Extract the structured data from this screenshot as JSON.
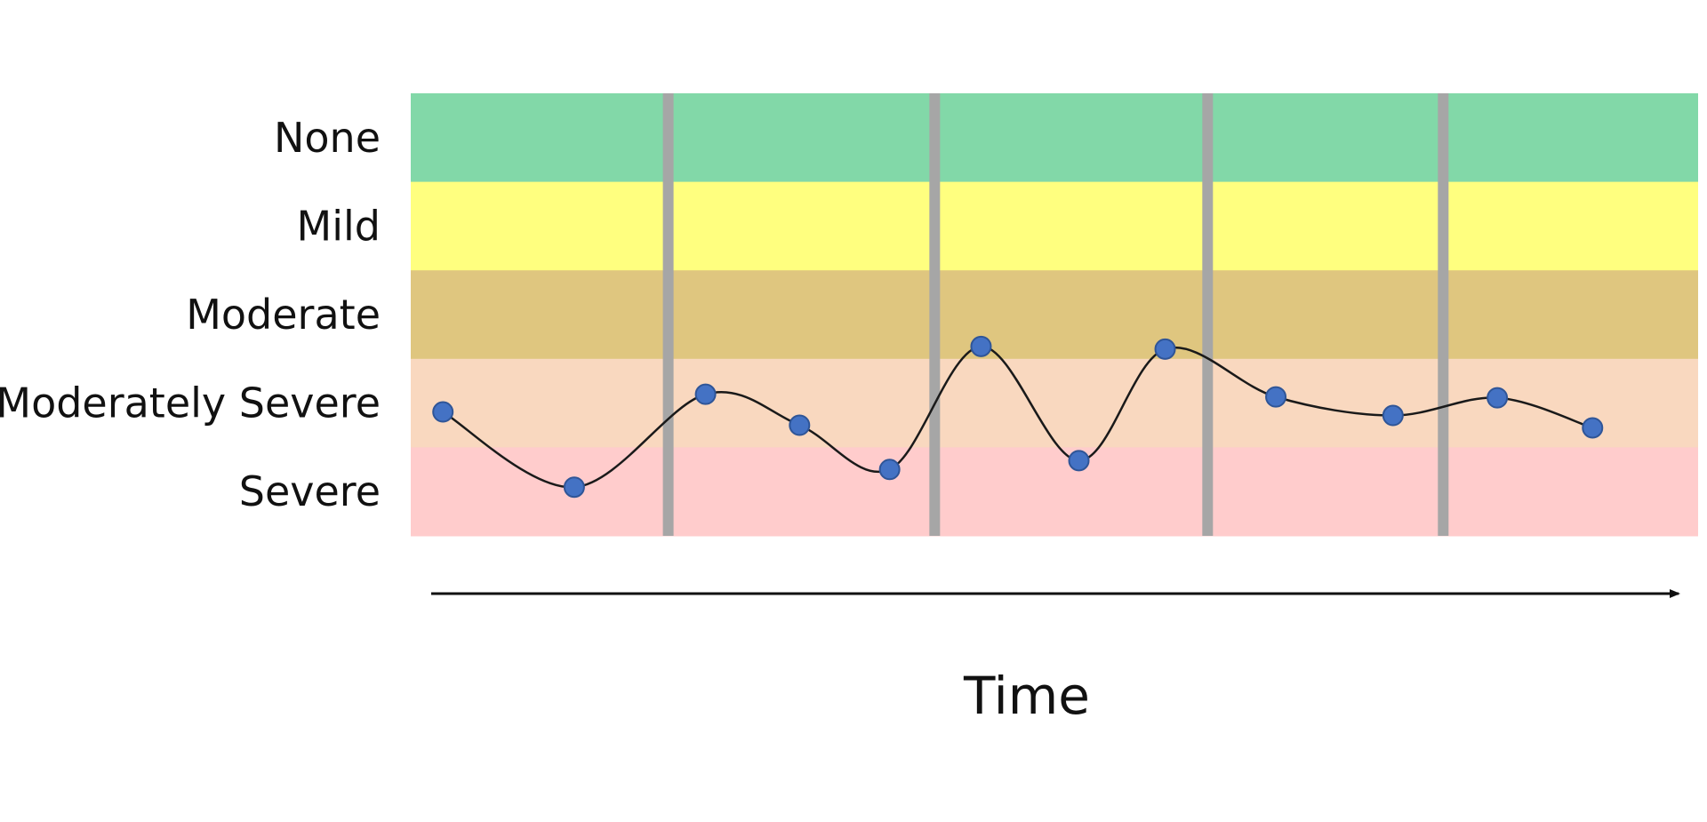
{
  "chart_data": {
    "type": "line",
    "title": "",
    "xlabel": "Time",
    "ylabel": "",
    "categories": [
      "None",
      "Mild",
      "Moderate",
      "Moderately Severe",
      "Severe"
    ],
    "band_colors": [
      "#82d8a8",
      "#ffff7f",
      "#dfc67f",
      "#f9d8bf",
      "#ffcccc"
    ],
    "separator_color": "#a6a6a6",
    "line_color": "#1a1a1a",
    "marker_color": "#4472c4",
    "marker_edge_color": "#2f5597",
    "axis_color": "#111111",
    "x_range": [
      0,
      100
    ],
    "y_range": [
      0,
      5
    ],
    "y_scale_note": "0 = bottom of Severe band, 5 = top of None band",
    "phase_separators_x": [
      20,
      40.7,
      61.9,
      80.2
    ],
    "series": [
      {
        "values": [
          {
            "x": 2.5,
            "y": 1.4
          },
          {
            "x": 12.7,
            "y": 0.55
          },
          {
            "x": 22.9,
            "y": 1.6
          },
          {
            "x": 30.2,
            "y": 1.25
          },
          {
            "x": 37.2,
            "y": 0.75
          },
          {
            "x": 44.3,
            "y": 2.14
          },
          {
            "x": 51.9,
            "y": 0.85
          },
          {
            "x": 58.6,
            "y": 2.11
          },
          {
            "x": 67.2,
            "y": 1.57
          },
          {
            "x": 76.3,
            "y": 1.36
          },
          {
            "x": 84.4,
            "y": 1.56
          },
          {
            "x": 91.8,
            "y": 1.22
          }
        ]
      }
    ]
  }
}
